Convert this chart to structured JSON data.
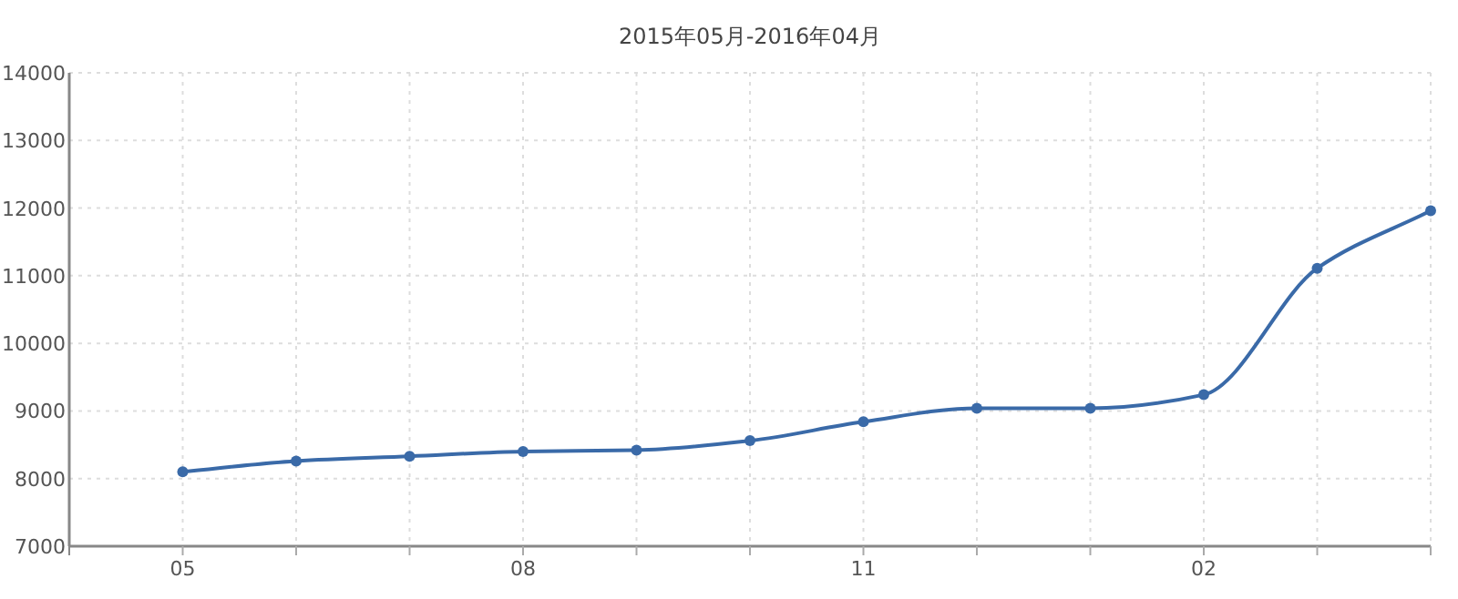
{
  "chart_data": {
    "type": "line",
    "title": "2015年05月-2016年04月",
    "categories": [
      "05",
      null,
      null,
      "08",
      null,
      null,
      "11",
      null,
      null,
      "02",
      null,
      null
    ],
    "values": [
      8100,
      8260,
      8330,
      8400,
      8420,
      8560,
      8840,
      9040,
      9040,
      9240,
      11110,
      11960
    ],
    "color": "#3a6aa8",
    "ylim": [
      7000,
      14000
    ],
    "yticks": [
      7000,
      8000,
      9000,
      10000,
      11000,
      12000,
      13000,
      14000
    ],
    "grid": true,
    "marker": "circle",
    "line_style": "solid"
  }
}
